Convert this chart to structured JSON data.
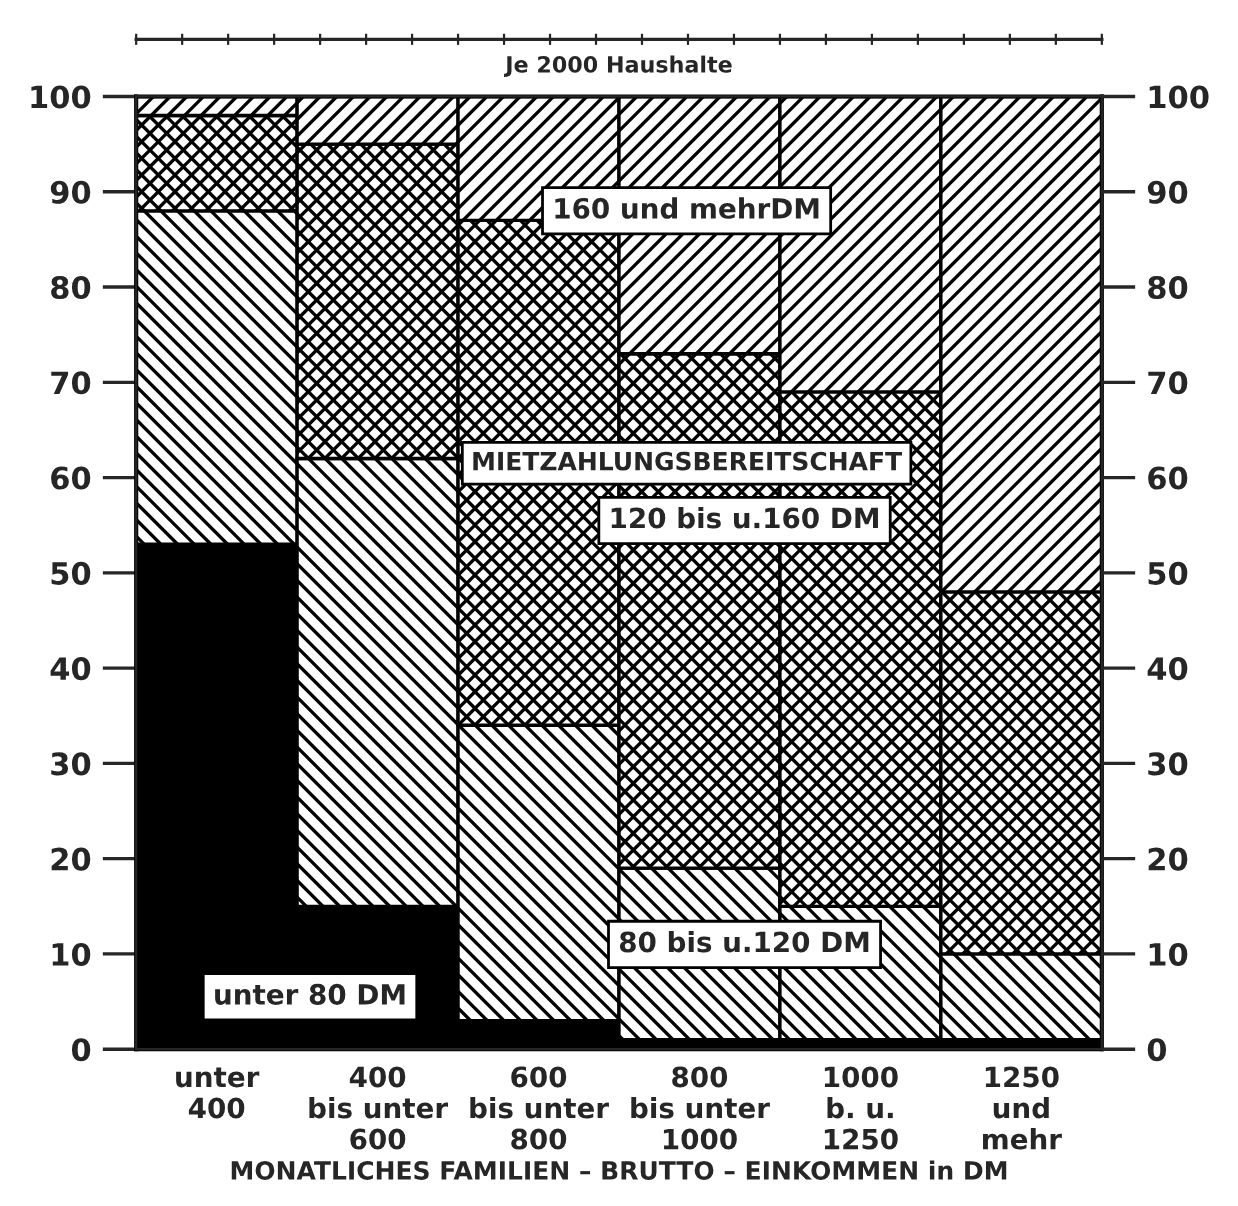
{
  "chart_data": {
    "type": "bar",
    "stacked": true,
    "x2label": "Je 2000 Haushalte",
    "xlabel": "MONATLICHES FAMILIEN – BRUTTO – EINKOMMEN in DM",
    "legend_title": "MIETZAHLUNGSBEREITSCHAFT",
    "categories": [
      "unter\n400",
      "400\nbis unter\n600",
      "600\nbis unter\n800",
      "800\nbis unter\n1000",
      "1000\nb. u.\n1250",
      "1250\nund\nmehr"
    ],
    "series": [
      {
        "name": "unter 80 DM",
        "color": "#000000",
        "values": [
          53,
          15,
          3,
          1,
          1,
          1
        ]
      },
      {
        "name": "80 bis u.120 DM",
        "color": "#000000",
        "values": [
          35,
          47,
          31,
          18,
          14,
          9
        ]
      },
      {
        "name": "120 bis u.160 DM",
        "color": "#000000",
        "values": [
          10,
          33,
          53,
          54,
          54,
          38
        ]
      },
      {
        "name": "160 und mehrDM",
        "color": "#000000",
        "values": [
          2,
          5,
          13,
          27,
          31,
          52
        ]
      }
    ],
    "ylim": [
      0,
      100
    ],
    "yticks": [
      0,
      10,
      20,
      30,
      40,
      50,
      60,
      70,
      80,
      90,
      100
    ],
    "y2lim": [
      0,
      100
    ],
    "y2ticks": [
      0,
      10,
      20,
      30,
      40,
      50,
      60,
      70,
      80,
      90,
      100
    ]
  }
}
